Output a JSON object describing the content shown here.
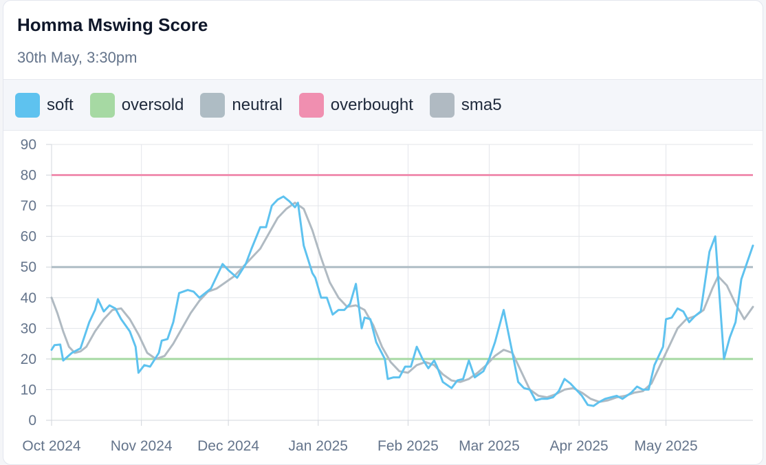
{
  "header": {
    "title": "Homma Mswing Score",
    "subtitle": "30th May, 3:30pm"
  },
  "colors": {
    "soft": "#5ec2ef",
    "oversold": "#a6d9a3",
    "neutral": "#aebcc4",
    "overbought": "#f08fb0",
    "sma5": "#b0bac2"
  },
  "legend": [
    {
      "key": "soft",
      "label": "soft",
      "color": "#5ec2ef"
    },
    {
      "key": "oversold",
      "label": "oversold",
      "color": "#a6d9a3"
    },
    {
      "key": "neutral",
      "label": "neutral",
      "color": "#aebcc4"
    },
    {
      "key": "overbought",
      "label": "overbought",
      "color": "#f08fb0"
    },
    {
      "key": "sma5",
      "label": "sma5",
      "color": "#b0bac2"
    }
  ],
  "chart_data": {
    "type": "line",
    "title": "Homma Mswing Score",
    "subtitle": "30th May, 3:30pm",
    "xlim": [
      "2024-10-01",
      "2025-05-31"
    ],
    "ylim": [
      0,
      90
    ],
    "y_ticks": [
      0,
      10,
      20,
      30,
      40,
      50,
      60,
      70,
      80,
      90
    ],
    "x_ticks": [
      {
        "date": "2024-10-01",
        "label": "Oct 2024"
      },
      {
        "date": "2024-11-01",
        "label": "Nov 2024"
      },
      {
        "date": "2024-12-01",
        "label": "Dec 2024"
      },
      {
        "date": "2025-01-01",
        "label": "Jan 2025"
      },
      {
        "date": "2025-02-01",
        "label": "Feb 2025"
      },
      {
        "date": "2025-03-01",
        "label": "Mar 2025"
      },
      {
        "date": "2025-04-01",
        "label": "Apr 2025"
      },
      {
        "date": "2025-05-01",
        "label": "May 2025"
      }
    ],
    "grid": true,
    "legend_position": "top",
    "reference_lines": [
      {
        "name": "oversold",
        "value": 20
      },
      {
        "name": "neutral",
        "value": 50
      },
      {
        "name": "overbought",
        "value": 80
      }
    ],
    "series": [
      {
        "name": "soft",
        "points": [
          [
            "2024-10-01",
            23
          ],
          [
            "2024-10-02",
            24.5
          ],
          [
            "2024-10-04",
            24.7
          ],
          [
            "2024-10-05",
            19.5
          ],
          [
            "2024-10-08",
            22
          ],
          [
            "2024-10-09",
            22.5
          ],
          [
            "2024-10-11",
            23.5
          ],
          [
            "2024-10-14",
            32
          ],
          [
            "2024-10-16",
            36
          ],
          [
            "2024-10-17",
            39.5
          ],
          [
            "2024-10-19",
            35.5
          ],
          [
            "2024-10-21",
            37.5
          ],
          [
            "2024-10-23",
            36.5
          ],
          [
            "2024-10-25",
            33
          ],
          [
            "2024-10-28",
            29
          ],
          [
            "2024-10-30",
            24
          ],
          [
            "2024-10-31",
            15.5
          ],
          [
            "2024-11-02",
            18
          ],
          [
            "2024-11-04",
            17.5
          ],
          [
            "2024-11-07",
            22
          ],
          [
            "2024-11-08",
            26
          ],
          [
            "2024-11-10",
            26.5
          ],
          [
            "2024-11-12",
            32
          ],
          [
            "2024-11-14",
            41.5
          ],
          [
            "2024-11-17",
            42.5
          ],
          [
            "2024-11-19",
            42
          ],
          [
            "2024-11-21",
            40
          ],
          [
            "2024-11-25",
            43
          ],
          [
            "2024-11-29",
            51
          ],
          [
            "2024-12-01",
            49
          ],
          [
            "2024-12-04",
            46.5
          ],
          [
            "2024-12-07",
            51
          ],
          [
            "2024-12-09",
            56
          ],
          [
            "2024-12-12",
            63
          ],
          [
            "2024-12-14",
            63
          ],
          [
            "2024-12-16",
            70
          ],
          [
            "2024-12-18",
            72
          ],
          [
            "2024-12-20",
            73
          ],
          [
            "2024-12-22",
            71.5
          ],
          [
            "2024-12-24",
            69.5
          ],
          [
            "2024-12-25",
            71
          ],
          [
            "2024-12-27",
            57
          ],
          [
            "2024-12-30",
            48
          ],
          [
            "2024-12-31",
            46.5
          ],
          [
            "2025-01-02",
            40
          ],
          [
            "2025-01-04",
            40
          ],
          [
            "2025-01-06",
            34.5
          ],
          [
            "2025-01-08",
            36
          ],
          [
            "2025-01-10",
            36
          ],
          [
            "2025-01-12",
            38
          ],
          [
            "2025-01-14",
            44.5
          ],
          [
            "2025-01-16",
            30
          ],
          [
            "2025-01-17",
            33.5
          ],
          [
            "2025-01-19",
            33
          ],
          [
            "2025-01-21",
            25.5
          ],
          [
            "2025-01-24",
            20
          ],
          [
            "2025-01-25",
            13.5
          ],
          [
            "2025-01-27",
            14
          ],
          [
            "2025-01-29",
            14
          ],
          [
            "2025-01-31",
            17.5
          ],
          [
            "2025-02-02",
            17.5
          ],
          [
            "2025-02-04",
            24
          ],
          [
            "2025-02-06",
            20
          ],
          [
            "2025-02-08",
            17
          ],
          [
            "2025-02-10",
            19.5
          ],
          [
            "2025-02-11",
            17.5
          ],
          [
            "2025-02-13",
            12.5
          ],
          [
            "2025-02-16",
            10.5
          ],
          [
            "2025-02-18",
            13
          ],
          [
            "2025-02-20",
            13.5
          ],
          [
            "2025-02-22",
            19.5
          ],
          [
            "2025-02-24",
            14
          ],
          [
            "2025-02-27",
            16
          ],
          [
            "2025-03-01",
            20
          ],
          [
            "2025-03-03",
            25.5
          ],
          [
            "2025-03-06",
            36
          ],
          [
            "2025-03-09",
            22
          ],
          [
            "2025-03-11",
            12.5
          ],
          [
            "2025-03-13",
            10.5
          ],
          [
            "2025-03-15",
            10
          ],
          [
            "2025-03-17",
            6.5
          ],
          [
            "2025-03-19",
            7
          ],
          [
            "2025-03-21",
            7
          ],
          [
            "2025-03-23",
            7.5
          ],
          [
            "2025-03-25",
            9.5
          ],
          [
            "2025-03-27",
            13.5
          ],
          [
            "2025-03-29",
            12
          ],
          [
            "2025-03-31",
            10
          ],
          [
            "2025-04-02",
            8
          ],
          [
            "2025-04-04",
            5
          ],
          [
            "2025-04-06",
            4.7
          ],
          [
            "2025-04-08",
            6
          ],
          [
            "2025-04-10",
            7
          ],
          [
            "2025-04-12",
            7.5
          ],
          [
            "2025-04-14",
            8
          ],
          [
            "2025-04-16",
            7
          ],
          [
            "2025-04-19",
            9
          ],
          [
            "2025-04-21",
            11
          ],
          [
            "2025-04-23",
            10
          ],
          [
            "2025-04-25",
            10
          ],
          [
            "2025-04-27",
            18
          ],
          [
            "2025-04-30",
            24
          ],
          [
            "2025-05-01",
            33
          ],
          [
            "2025-05-03",
            33.5
          ],
          [
            "2025-05-05",
            36.5
          ],
          [
            "2025-05-07",
            35.5
          ],
          [
            "2025-05-09",
            32
          ],
          [
            "2025-05-11",
            34
          ],
          [
            "2025-05-13",
            35.5
          ],
          [
            "2025-05-14",
            42
          ],
          [
            "2025-05-16",
            55
          ],
          [
            "2025-05-18",
            60
          ],
          [
            "2025-05-21",
            20
          ],
          [
            "2025-05-23",
            27
          ],
          [
            "2025-05-25",
            32
          ],
          [
            "2025-05-27",
            46
          ],
          [
            "2025-05-31",
            57
          ]
        ]
      },
      {
        "name": "sma5",
        "points": [
          [
            "2024-10-01",
            40
          ],
          [
            "2024-10-03",
            35
          ],
          [
            "2024-10-05",
            29
          ],
          [
            "2024-10-07",
            24
          ],
          [
            "2024-10-09",
            22
          ],
          [
            "2024-10-11",
            22.5
          ],
          [
            "2024-10-13",
            24
          ],
          [
            "2024-10-16",
            29
          ],
          [
            "2024-10-19",
            33
          ],
          [
            "2024-10-22",
            36
          ],
          [
            "2024-10-25",
            36.5
          ],
          [
            "2024-10-28",
            33
          ],
          [
            "2024-10-31",
            28
          ],
          [
            "2024-11-03",
            22
          ],
          [
            "2024-11-06",
            20
          ],
          [
            "2024-11-09",
            21
          ],
          [
            "2024-11-12",
            25
          ],
          [
            "2024-11-15",
            30
          ],
          [
            "2024-11-18",
            35
          ],
          [
            "2024-11-21",
            39
          ],
          [
            "2024-11-24",
            42
          ],
          [
            "2024-11-27",
            43
          ],
          [
            "2024-11-30",
            45
          ],
          [
            "2024-12-03",
            47
          ],
          [
            "2024-12-06",
            50
          ],
          [
            "2024-12-09",
            53
          ],
          [
            "2024-12-12",
            56
          ],
          [
            "2024-12-15",
            61
          ],
          [
            "2024-12-18",
            66
          ],
          [
            "2024-12-21",
            69
          ],
          [
            "2024-12-24",
            71
          ],
          [
            "2024-12-27",
            69
          ],
          [
            "2024-12-30",
            62
          ],
          [
            "2025-01-02",
            53
          ],
          [
            "2025-01-05",
            45
          ],
          [
            "2025-01-08",
            40
          ],
          [
            "2025-01-11",
            37
          ],
          [
            "2025-01-14",
            37.5
          ],
          [
            "2025-01-17",
            36
          ],
          [
            "2025-01-20",
            31
          ],
          [
            "2025-01-23",
            24
          ],
          [
            "2025-01-26",
            19
          ],
          [
            "2025-01-29",
            16
          ],
          [
            "2025-02-01",
            15.5
          ],
          [
            "2025-02-04",
            18
          ],
          [
            "2025-02-07",
            19
          ],
          [
            "2025-02-10",
            18
          ],
          [
            "2025-02-13",
            15
          ],
          [
            "2025-02-16",
            13
          ],
          [
            "2025-02-19",
            12.5
          ],
          [
            "2025-02-22",
            13.5
          ],
          [
            "2025-02-25",
            15.5
          ],
          [
            "2025-02-28",
            18
          ],
          [
            "2025-03-03",
            21
          ],
          [
            "2025-03-06",
            23
          ],
          [
            "2025-03-09",
            22
          ],
          [
            "2025-03-12",
            16
          ],
          [
            "2025-03-15",
            10
          ],
          [
            "2025-03-18",
            8
          ],
          [
            "2025-03-21",
            7.5
          ],
          [
            "2025-03-24",
            8.5
          ],
          [
            "2025-03-27",
            10
          ],
          [
            "2025-03-30",
            10.5
          ],
          [
            "2025-04-02",
            9
          ],
          [
            "2025-04-05",
            7
          ],
          [
            "2025-04-08",
            6
          ],
          [
            "2025-04-11",
            6.5
          ],
          [
            "2025-04-14",
            7.5
          ],
          [
            "2025-04-17",
            8
          ],
          [
            "2025-04-20",
            9
          ],
          [
            "2025-04-23",
            9.5
          ],
          [
            "2025-04-26",
            12
          ],
          [
            "2025-04-29",
            18
          ],
          [
            "2025-05-02",
            24
          ],
          [
            "2025-05-05",
            30
          ],
          [
            "2025-05-08",
            33
          ],
          [
            "2025-05-11",
            34
          ],
          [
            "2025-05-14",
            36
          ],
          [
            "2025-05-17",
            43
          ],
          [
            "2025-05-19",
            47
          ],
          [
            "2025-05-22",
            44
          ],
          [
            "2025-05-25",
            38
          ],
          [
            "2025-05-28",
            33
          ],
          [
            "2025-05-31",
            37
          ]
        ]
      }
    ]
  }
}
